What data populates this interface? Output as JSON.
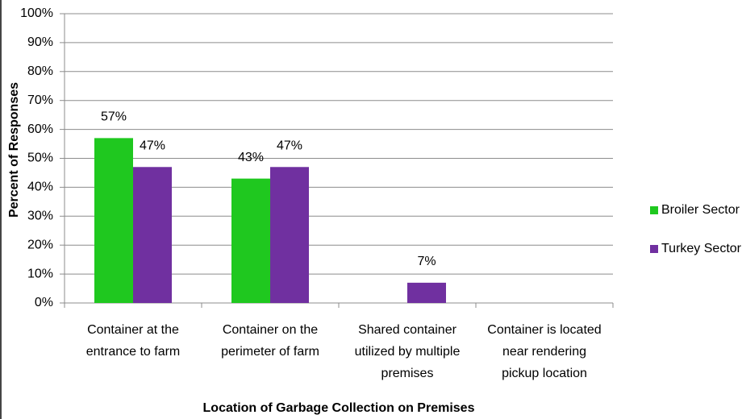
{
  "chart_data": {
    "type": "bar",
    "x_label": "Location of Garbage Collection on Premises",
    "y_label": "Percent of Responses",
    "categories": [
      "Container at the entrance to farm",
      "Container on the perimeter of farm",
      "Shared container utilized by multiple premises",
      "Container is located near rendering pickup location"
    ],
    "series": [
      {
        "name": "Broiler Sector",
        "color": "#1fc81f",
        "values": [
          57,
          43,
          null,
          null
        ],
        "value_labels": [
          "57%",
          "43%",
          null,
          null
        ]
      },
      {
        "name": "Turkey Sector",
        "color": "#7030a0",
        "values": [
          47,
          47,
          7,
          null
        ],
        "value_labels": [
          "47%",
          "47%",
          "7%",
          null
        ]
      }
    ],
    "ylim": [
      0,
      100
    ],
    "yticks": [
      {
        "value": 0,
        "label": "0%"
      },
      {
        "value": 10,
        "label": "10%"
      },
      {
        "value": 20,
        "label": "20%"
      },
      {
        "value": 30,
        "label": "30%"
      },
      {
        "value": 40,
        "label": "40%"
      },
      {
        "value": 50,
        "label": "50%"
      },
      {
        "value": 60,
        "label": "60%"
      },
      {
        "value": 70,
        "label": "70%"
      },
      {
        "value": 80,
        "label": "80%"
      },
      {
        "value": 90,
        "label": "90%"
      },
      {
        "value": 100,
        "label": "100%"
      }
    ],
    "grid": true,
    "legend": "right"
  }
}
